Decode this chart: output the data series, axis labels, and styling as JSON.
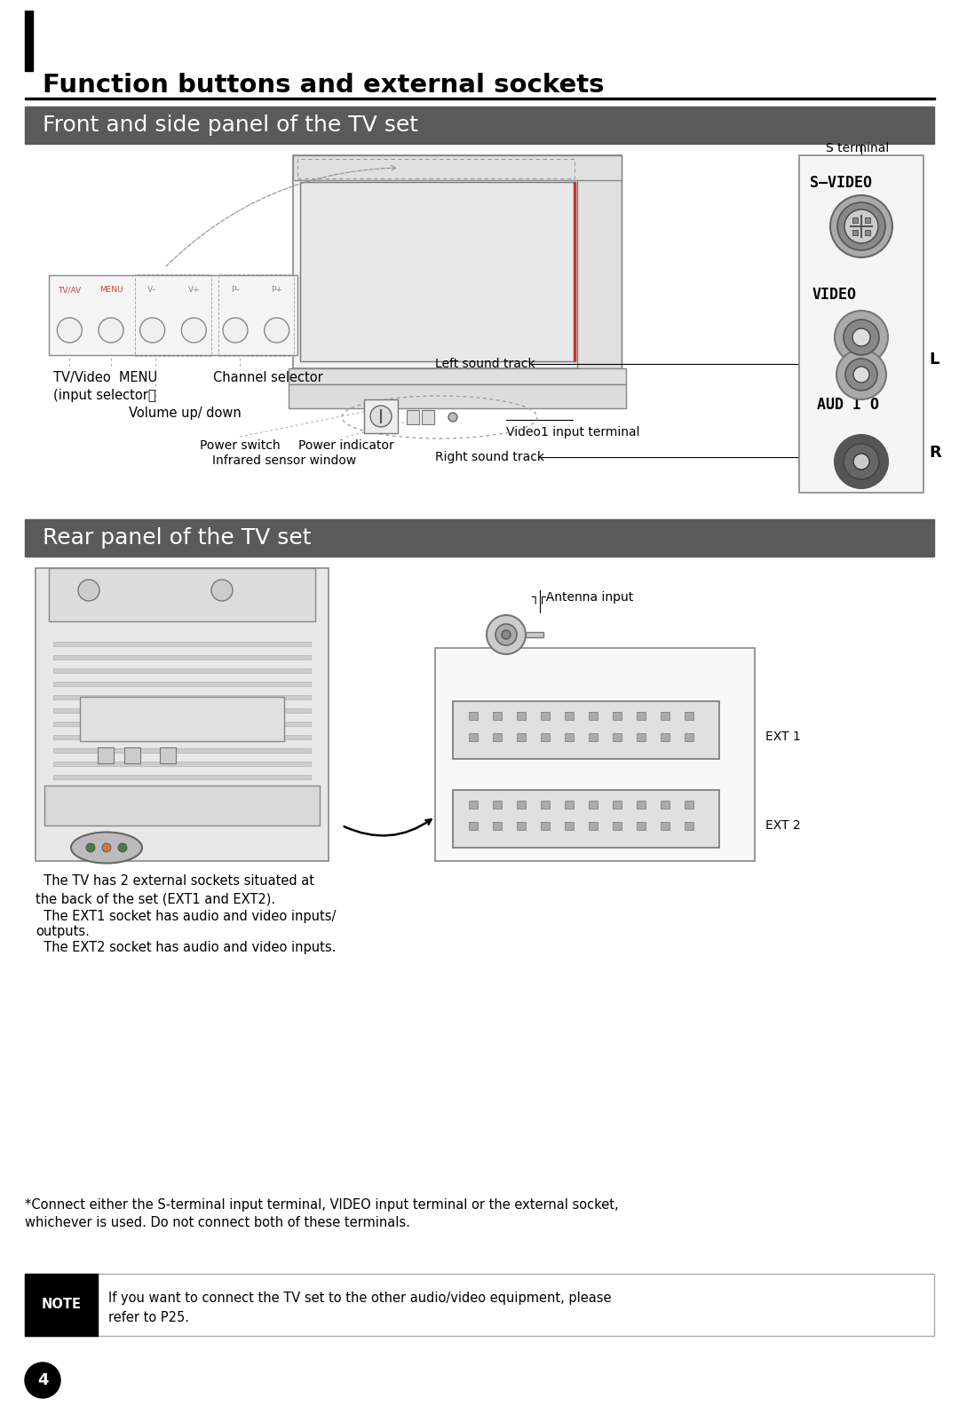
{
  "title": "Function buttons and external sockets",
  "section1": "Front and side panel of the TV set",
  "section2": "Rear panel of the TV set",
  "bg_color": "#ffffff",
  "header_bar_color": "#5a5a5a",
  "note_text1": "If you want to connect the TV set to the other audio/video equipment, please",
  "note_text2": "refer to P25.",
  "asterisk_text1": "*Connect either the S-terminal input terminal, VIDEO input terminal or the external socket,",
  "asterisk_text2": "whichever is used. Do not connect both of these terminals.",
  "rear_text1": "  The TV has 2 external sockets situated at",
  "rear_text2": "the back of the set (EXT1 and EXT2).",
  "rear_text3": "  The EXT1 socket has audio and video inputs/",
  "rear_text4": "outputs.",
  "rear_text5": "  The EXT2 socket has audio and video inputs.",
  "page_num": "4"
}
